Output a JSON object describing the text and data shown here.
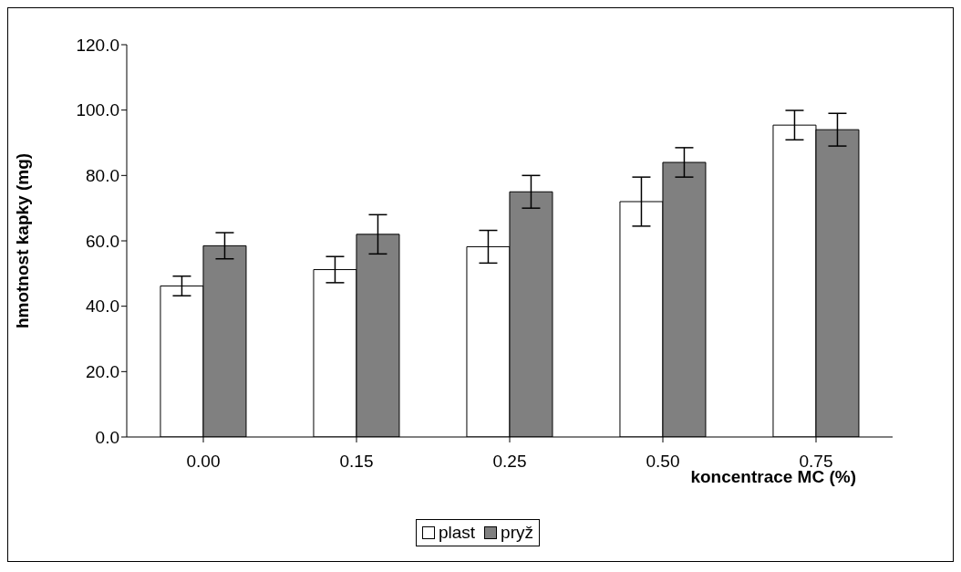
{
  "chart_data": {
    "type": "bar",
    "xlabel": "koncentrace MC (%)",
    "ylabel": "hmotnost kapky (mg)",
    "categories": [
      "0.00",
      "0.15",
      "0.25",
      "0.50",
      "0.75"
    ],
    "series": [
      {
        "name": "plast",
        "color": "#ffffff",
        "values": [
          46.2,
          51.2,
          58.2,
          72,
          95.4
        ],
        "errors": [
          3,
          4,
          5,
          7.5,
          4.5
        ]
      },
      {
        "name": "pryž",
        "color": "#808080",
        "values": [
          58.5,
          62,
          75,
          84,
          94
        ],
        "errors": [
          4,
          6,
          5,
          4.5,
          5
        ]
      }
    ],
    "ylim": [
      0,
      120
    ],
    "yticks": [
      {
        "value": 0,
        "label": "0.0"
      },
      {
        "value": 20,
        "label": "20.0"
      },
      {
        "value": 40,
        "label": "40.0"
      },
      {
        "value": 60,
        "label": "60.0"
      },
      {
        "value": 80,
        "label": "80.0"
      },
      {
        "value": 100,
        "label": "100.0"
      },
      {
        "value": 120,
        "label": "120.0"
      }
    ],
    "grid": false,
    "legend": "bottom"
  }
}
